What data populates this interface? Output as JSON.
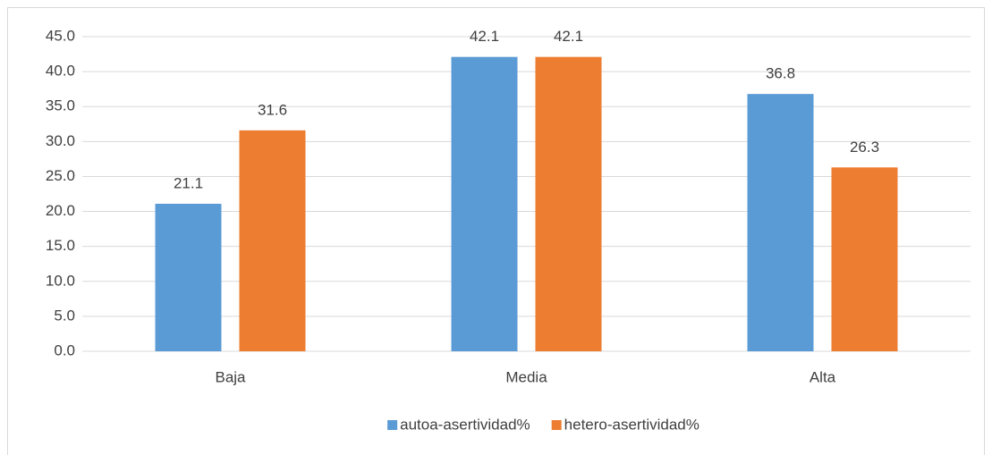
{
  "chart_data": {
    "type": "bar",
    "categories": [
      "Baja",
      "Media",
      "Alta"
    ],
    "series": [
      {
        "name": "autoa-asertividad%",
        "color": "#5b9bd5",
        "values": [
          21.1,
          42.1,
          36.8
        ]
      },
      {
        "name": "hetero-asertividad%",
        "color": "#ed7d31",
        "values": [
          31.6,
          42.1,
          26.3
        ]
      }
    ],
    "ylim": [
      0,
      45
    ],
    "yticks": [
      {
        "value": 0,
        "label": "0.0"
      },
      {
        "value": 5,
        "label": "5.0"
      },
      {
        "value": 10,
        "label": "10.0"
      },
      {
        "value": 15,
        "label": "15.0"
      },
      {
        "value": 20,
        "label": "20.0"
      },
      {
        "value": 25,
        "label": "25.0"
      },
      {
        "value": 30,
        "label": "30.0"
      },
      {
        "value": 35,
        "label": "35.0"
      },
      {
        "value": 40,
        "label": "40.0"
      },
      {
        "value": 45,
        "label": "45.0"
      }
    ],
    "grid": true,
    "legend": "bottom"
  }
}
